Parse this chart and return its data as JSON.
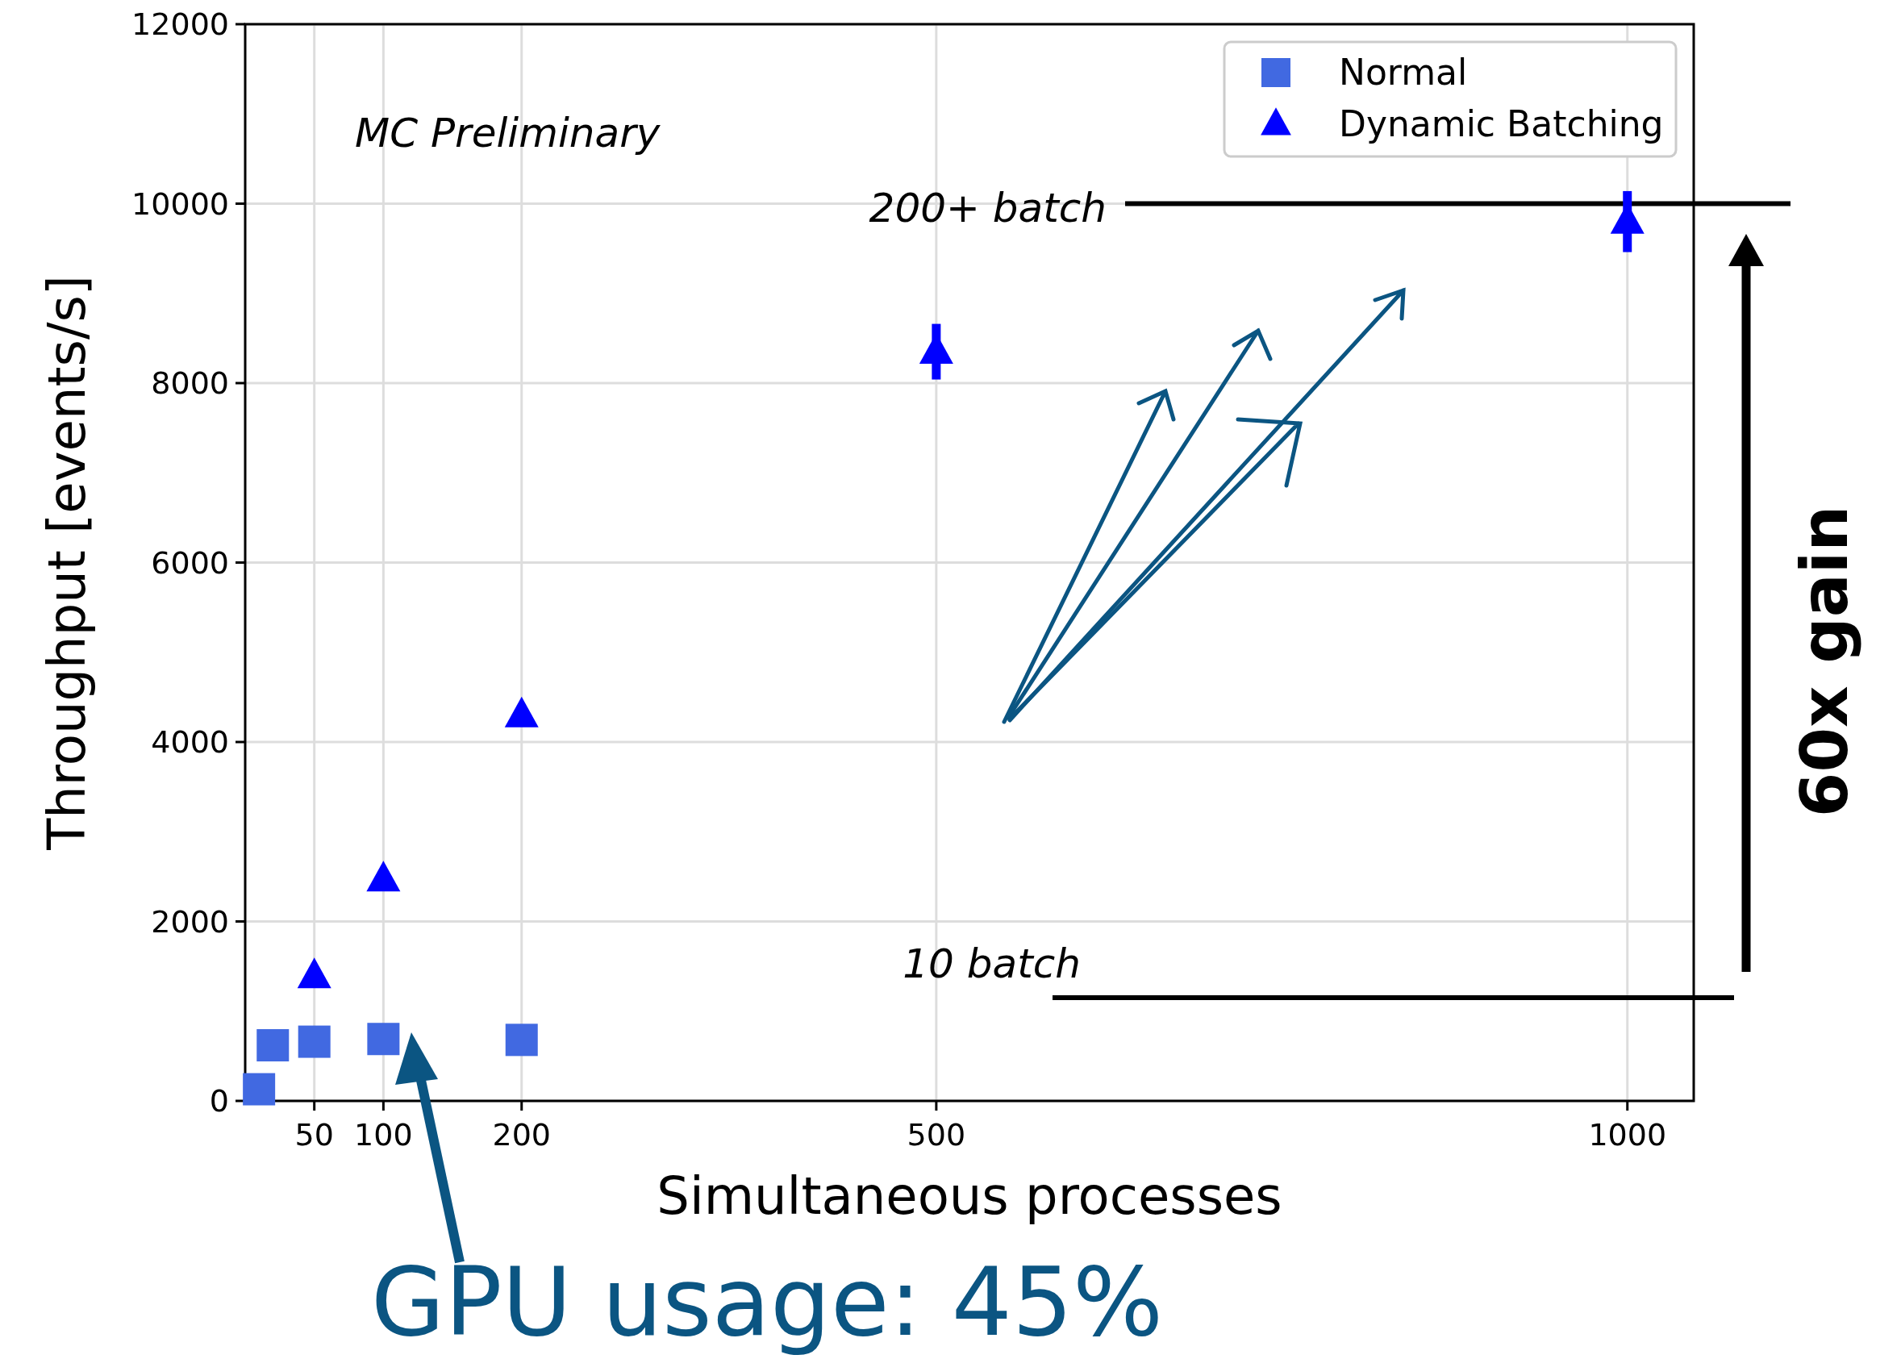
{
  "chart_data": {
    "type": "scatter",
    "xlabel": "Simultaneous processes",
    "ylabel": "Throughput [events/s]",
    "xlim": [
      0,
      1048
    ],
    "xticks": [
      50,
      100,
      200,
      500,
      1000
    ],
    "ylim": [
      0,
      12000
    ],
    "yticks": [
      0,
      2000,
      4000,
      6000,
      8000,
      10000,
      12000
    ],
    "grid": true,
    "legend": "top right",
    "series": [
      {
        "name": "Normal",
        "color": "#4169e1",
        "marker": "square",
        "x": [
          10,
          20,
          50,
          100,
          200
        ],
        "values": [
          130,
          620,
          660,
          690,
          680
        ]
      },
      {
        "name": "Dynamic Batching",
        "color": "#0000ff",
        "marker": "triangle",
        "x": [
          50,
          100,
          200,
          500,
          1000
        ],
        "values": [
          1390,
          2470,
          4300,
          8350,
          9800
        ],
        "errors": [
          null,
          null,
          null,
          310,
          340
        ]
      }
    ],
    "ref_lines": [
      {
        "axis": "y",
        "value": 10000,
        "label": "200+ batch",
        "color": "#000000"
      },
      {
        "axis": "y",
        "value": 1150,
        "label": "10 batch",
        "color": "#000000"
      }
    ],
    "annotations": [
      "MC Preliminary",
      "60x gain",
      "GPU usage: 45%"
    ]
  }
}
